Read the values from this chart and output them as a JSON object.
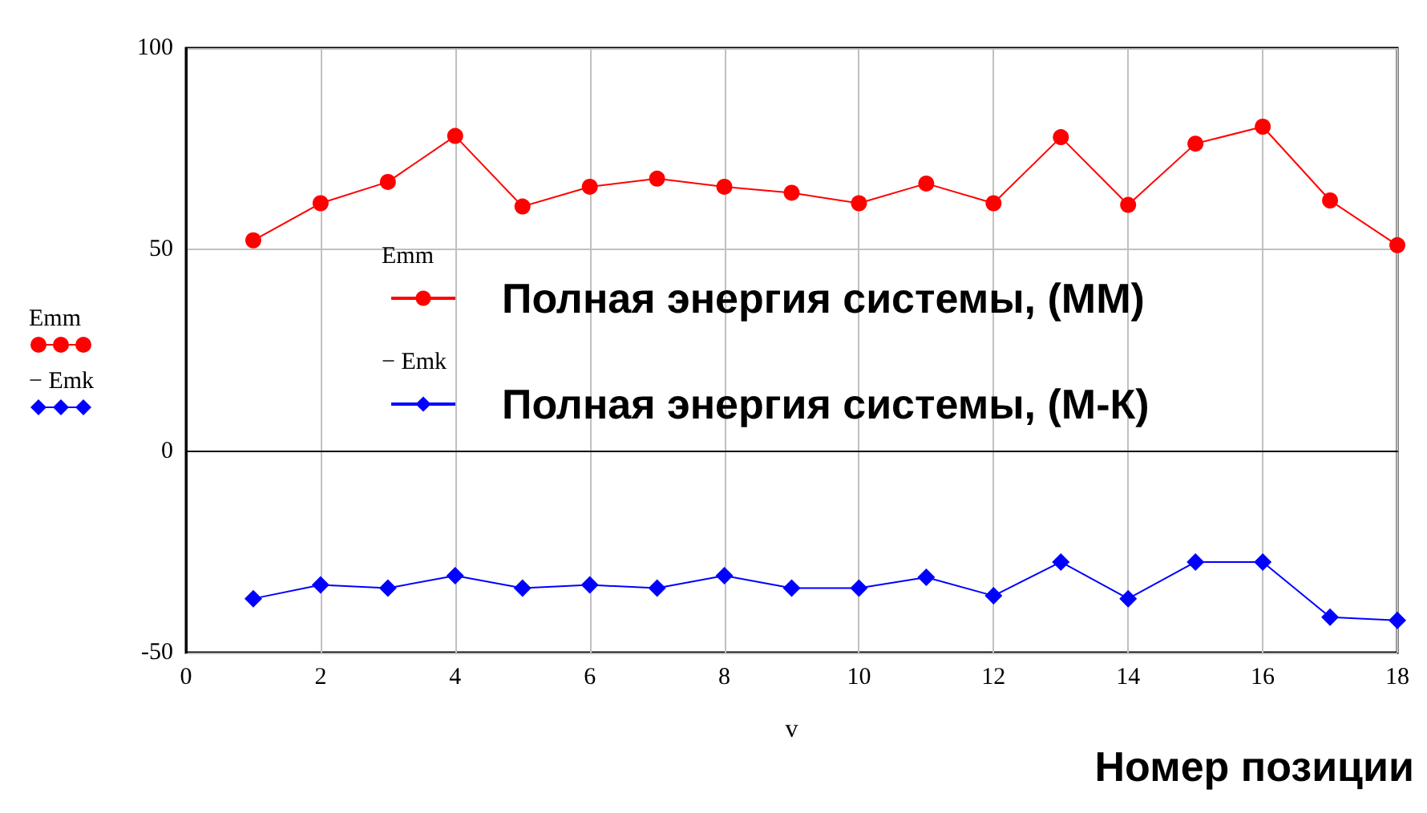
{
  "chart_data": {
    "type": "line",
    "xlabel": "v",
    "x": [
      1,
      2,
      3,
      4,
      5,
      6,
      7,
      8,
      9,
      10,
      11,
      12,
      13,
      14,
      15,
      16,
      17,
      18
    ],
    "series": [
      {
        "name": "Полная энергия системы, (ММ)",
        "color": "#ff0000",
        "marker": "circle",
        "values": [
          52.3,
          61.5,
          66.8,
          78.2,
          60.7,
          65.6,
          67.6,
          65.6,
          64.1,
          61.5,
          66.4,
          61.5,
          77.9,
          61.1,
          76.3,
          80.5,
          62.2,
          51.1
        ]
      },
      {
        "name": "Полная энергия системы, (М-К)",
        "color": "#0000ff",
        "marker": "diamond",
        "values": [
          -36.6,
          -33.2,
          -34,
          -30.9,
          -34,
          -33.2,
          -34,
          -30.9,
          -34,
          -34,
          -31.3,
          -35.9,
          -27.5,
          -36.6,
          -27.5,
          -27.5,
          -41.2,
          -42
        ]
      }
    ],
    "xlim": [
      0,
      18
    ],
    "xticks": [
      0,
      2,
      4,
      6,
      8,
      10,
      12,
      14,
      16,
      18
    ],
    "ylim": [
      -50,
      100
    ],
    "yticks": [
      -50,
      0,
      50,
      100
    ],
    "grid": true,
    "legend": "center",
    "line_style": "solid",
    "annotations": [
      "Emm",
      "− Emk",
      "Emm",
      "− Emk",
      "Номер позиции"
    ]
  }
}
